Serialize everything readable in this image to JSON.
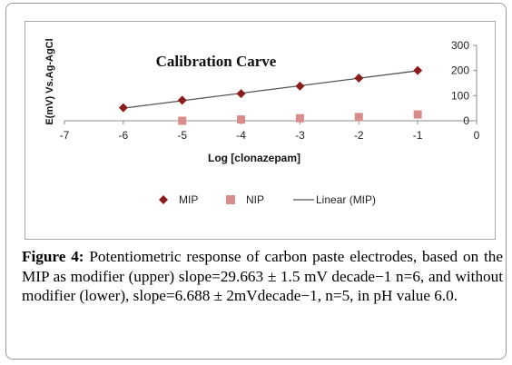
{
  "chart_data": {
    "type": "scatter",
    "title": "Calibration Carve",
    "xlabel": "Log [clonazepam]",
    "ylabel": "E(mV) Vs.Ag-AgCl",
    "xlim": [
      -7,
      0
    ],
    "ylim": [
      0,
      300
    ],
    "x_ticks": [
      "-7",
      "-6",
      "-5",
      "-4",
      "-3",
      "-2",
      "-1",
      "0"
    ],
    "y_ticks": [
      "0",
      "100",
      "200",
      "300"
    ],
    "grid": false,
    "legend_position": "bottom",
    "series": [
      {
        "name": "MIP",
        "marker": "diamond",
        "color": "#8b1c1c",
        "x": [
          -6,
          -5,
          -4,
          -3,
          -2,
          -1
        ],
        "y": [
          52,
          82,
          108,
          138,
          170,
          200
        ]
      },
      {
        "name": "NIP",
        "marker": "square",
        "color": "#d98c8c",
        "x": [
          -5,
          -4,
          -3,
          -2,
          -1
        ],
        "y": [
          0,
          5,
          10,
          15,
          25
        ]
      },
      {
        "name": "Linear (MIP)",
        "marker": "line",
        "color": "#555555",
        "x": [
          -6,
          -1
        ],
        "y": [
          50,
          199
        ]
      }
    ]
  },
  "caption": {
    "label": "Figure 4:",
    "text": " Potentiometric response of carbon paste electrodes, based on the MIP as modifier (upper) slope=29.663 ± 1.5 mV decade−1 n=6, and without modifier (lower), slope=6.688 ± 2mVdecade−1, n=5, in pH value 6.0."
  }
}
